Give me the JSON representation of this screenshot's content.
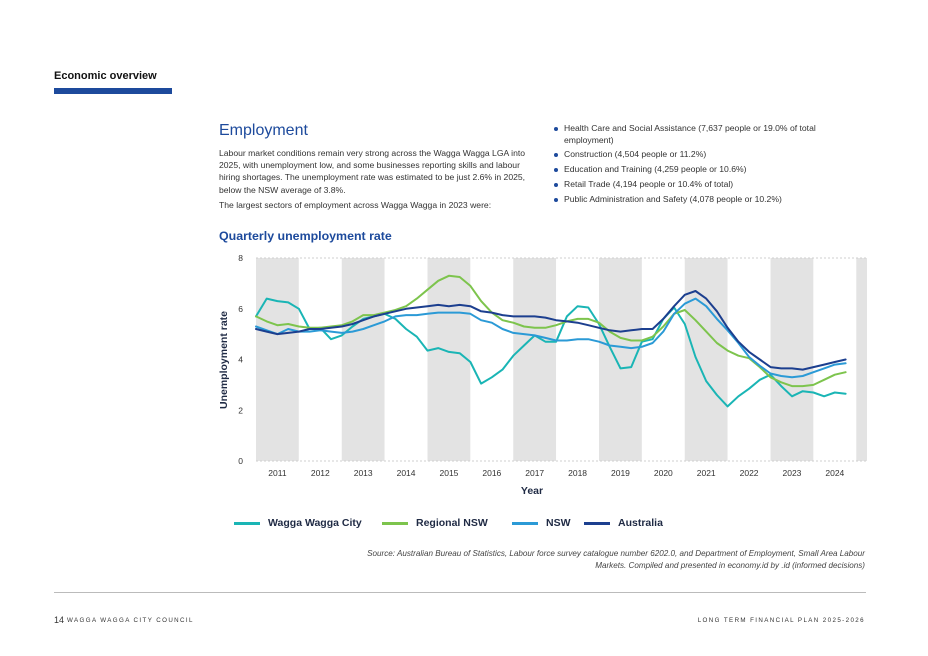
{
  "header": {
    "section": "Economic overview"
  },
  "main": {
    "heading": "Employment",
    "intro": "Labour market conditions remain very strong across the Wagga Wagga LGA into 2025, with unemployment low, and some businesses reporting skills and labour hiring shortages. The unemployment rate was estimated to be just 2.6% in 2025, below the NSW average of 3.8%.",
    "intro2": "The largest sectors of employment across Wagga Wagga in 2023 were:",
    "bullets": [
      "Health Care and Social Assistance (7,637 people or 19.0% of total employment)",
      "Construction (4,504 people or 11.2%)",
      "Education and Training (4,259 people or 10.6%)",
      "Retail Trade (4,194 people or 10.4% of total)",
      "Public Administration and Safety (4,078 people or 10.2%)"
    ]
  },
  "chart_data": {
    "type": "line",
    "title": "Quarterly unemployment rate",
    "xlabel": "Year",
    "ylabel": "Unemployment rate",
    "xlim": [
      2010.5,
      2024.75
    ],
    "ylim": [
      0,
      8
    ],
    "yticks": [
      0,
      2,
      4,
      6,
      8
    ],
    "xticks": [
      "2011",
      "2012",
      "2013",
      "2014",
      "2015",
      "2016",
      "2017",
      "2018",
      "2019",
      "2020",
      "2021",
      "2022",
      "2023",
      "2024"
    ],
    "grid": "alternating shaded year bands",
    "legend": "bottom",
    "series": [
      {
        "name": "Wagga Wagga City",
        "color": "#1ab5b5",
        "points": [
          [
            2010.5,
            5.7
          ],
          [
            2010.75,
            6.4
          ],
          [
            2011,
            6.3
          ],
          [
            2011.25,
            6.25
          ],
          [
            2011.5,
            6.0
          ],
          [
            2011.75,
            5.2
          ],
          [
            2012,
            5.25
          ],
          [
            2012.25,
            4.8
          ],
          [
            2012.5,
            4.95
          ],
          [
            2012.75,
            5.3
          ],
          [
            2013,
            5.6
          ],
          [
            2013.25,
            5.7
          ],
          [
            2013.5,
            5.8
          ],
          [
            2013.75,
            5.6
          ],
          [
            2014,
            5.2
          ],
          [
            2014.25,
            4.9
          ],
          [
            2014.5,
            4.35
          ],
          [
            2014.75,
            4.45
          ],
          [
            2015,
            4.3
          ],
          [
            2015.25,
            4.25
          ],
          [
            2015.5,
            3.9
          ],
          [
            2015.75,
            3.05
          ],
          [
            2016,
            3.3
          ],
          [
            2016.25,
            3.6
          ],
          [
            2016.5,
            4.15
          ],
          [
            2016.75,
            4.55
          ],
          [
            2017,
            4.95
          ],
          [
            2017.25,
            4.7
          ],
          [
            2017.5,
            4.7
          ],
          [
            2017.75,
            5.7
          ],
          [
            2018,
            6.1
          ],
          [
            2018.25,
            6.05
          ],
          [
            2018.5,
            5.4
          ],
          [
            2018.75,
            4.5
          ],
          [
            2019,
            3.65
          ],
          [
            2019.25,
            3.7
          ],
          [
            2019.5,
            4.7
          ],
          [
            2019.75,
            4.8
          ],
          [
            2020,
            5.6
          ],
          [
            2020.25,
            6.05
          ],
          [
            2020.5,
            5.4
          ],
          [
            2020.75,
            4.1
          ],
          [
            2021,
            3.15
          ],
          [
            2021.25,
            2.6
          ],
          [
            2021.5,
            2.15
          ],
          [
            2021.75,
            2.55
          ],
          [
            2022,
            2.85
          ],
          [
            2022.25,
            3.2
          ],
          [
            2022.5,
            3.4
          ],
          [
            2022.75,
            2.95
          ],
          [
            2023,
            2.55
          ],
          [
            2023.25,
            2.75
          ],
          [
            2023.5,
            2.7
          ],
          [
            2023.75,
            2.55
          ],
          [
            2024,
            2.7
          ],
          [
            2024.25,
            2.65
          ]
        ]
      },
      {
        "name": "Regional NSW",
        "color": "#7dc44d",
        "points": [
          [
            2010.5,
            5.7
          ],
          [
            2010.75,
            5.5
          ],
          [
            2011,
            5.35
          ],
          [
            2011.25,
            5.4
          ],
          [
            2011.5,
            5.3
          ],
          [
            2011.75,
            5.25
          ],
          [
            2012,
            5.25
          ],
          [
            2012.25,
            5.3
          ],
          [
            2012.5,
            5.35
          ],
          [
            2012.75,
            5.5
          ],
          [
            2013,
            5.75
          ],
          [
            2013.25,
            5.75
          ],
          [
            2013.5,
            5.85
          ],
          [
            2013.75,
            5.95
          ],
          [
            2014,
            6.1
          ],
          [
            2014.25,
            6.4
          ],
          [
            2014.5,
            6.75
          ],
          [
            2014.75,
            7.1
          ],
          [
            2015,
            7.3
          ],
          [
            2015.25,
            7.25
          ],
          [
            2015.5,
            6.9
          ],
          [
            2015.75,
            6.3
          ],
          [
            2016,
            5.85
          ],
          [
            2016.25,
            5.55
          ],
          [
            2016.5,
            5.45
          ],
          [
            2016.75,
            5.3
          ],
          [
            2017,
            5.25
          ],
          [
            2017.25,
            5.25
          ],
          [
            2017.5,
            5.35
          ],
          [
            2017.75,
            5.5
          ],
          [
            2018,
            5.6
          ],
          [
            2018.25,
            5.6
          ],
          [
            2018.5,
            5.45
          ],
          [
            2018.75,
            5.1
          ],
          [
            2019,
            4.85
          ],
          [
            2019.25,
            4.75
          ],
          [
            2019.5,
            4.75
          ],
          [
            2019.75,
            4.9
          ],
          [
            2020,
            5.3
          ],
          [
            2020.25,
            5.8
          ],
          [
            2020.5,
            5.95
          ],
          [
            2020.75,
            5.55
          ],
          [
            2021,
            5.1
          ],
          [
            2021.25,
            4.65
          ],
          [
            2021.5,
            4.35
          ],
          [
            2021.75,
            4.15
          ],
          [
            2022,
            4.05
          ],
          [
            2022.25,
            3.7
          ],
          [
            2022.5,
            3.3
          ],
          [
            2022.75,
            3.1
          ],
          [
            2023,
            2.95
          ],
          [
            2023.25,
            2.95
          ],
          [
            2023.5,
            3.0
          ],
          [
            2023.75,
            3.2
          ],
          [
            2024,
            3.4
          ],
          [
            2024.25,
            3.5
          ]
        ]
      },
      {
        "name": "NSW",
        "color": "#2b9ad6",
        "points": [
          [
            2010.5,
            5.3
          ],
          [
            2010.75,
            5.15
          ],
          [
            2011,
            5.0
          ],
          [
            2011.25,
            5.2
          ],
          [
            2011.5,
            5.1
          ],
          [
            2011.75,
            5.1
          ],
          [
            2012,
            5.15
          ],
          [
            2012.25,
            5.1
          ],
          [
            2012.5,
            5.05
          ],
          [
            2012.75,
            5.1
          ],
          [
            2013,
            5.2
          ],
          [
            2013.25,
            5.35
          ],
          [
            2013.5,
            5.5
          ],
          [
            2013.75,
            5.7
          ],
          [
            2014,
            5.75
          ],
          [
            2014.25,
            5.75
          ],
          [
            2014.5,
            5.8
          ],
          [
            2014.75,
            5.85
          ],
          [
            2015,
            5.85
          ],
          [
            2015.25,
            5.85
          ],
          [
            2015.5,
            5.8
          ],
          [
            2015.75,
            5.55
          ],
          [
            2016,
            5.45
          ],
          [
            2016.25,
            5.2
          ],
          [
            2016.5,
            5.05
          ],
          [
            2016.75,
            5.0
          ],
          [
            2017,
            4.95
          ],
          [
            2017.25,
            4.85
          ],
          [
            2017.5,
            4.75
          ],
          [
            2017.75,
            4.75
          ],
          [
            2018,
            4.8
          ],
          [
            2018.25,
            4.8
          ],
          [
            2018.5,
            4.7
          ],
          [
            2018.75,
            4.55
          ],
          [
            2019,
            4.5
          ],
          [
            2019.25,
            4.45
          ],
          [
            2019.5,
            4.5
          ],
          [
            2019.75,
            4.65
          ],
          [
            2020,
            5.1
          ],
          [
            2020.25,
            5.8
          ],
          [
            2020.5,
            6.2
          ],
          [
            2020.75,
            6.4
          ],
          [
            2021,
            6.1
          ],
          [
            2021.25,
            5.6
          ],
          [
            2021.5,
            5.15
          ],
          [
            2021.75,
            4.65
          ],
          [
            2022,
            4.1
          ],
          [
            2022.25,
            3.75
          ],
          [
            2022.5,
            3.45
          ],
          [
            2022.75,
            3.35
          ],
          [
            2023,
            3.3
          ],
          [
            2023.25,
            3.35
          ],
          [
            2023.5,
            3.5
          ],
          [
            2023.75,
            3.65
          ],
          [
            2024,
            3.8
          ],
          [
            2024.25,
            3.85
          ]
        ]
      },
      {
        "name": "Australia",
        "color": "#1c3f8f",
        "points": [
          [
            2010.5,
            5.2
          ],
          [
            2010.75,
            5.1
          ],
          [
            2011,
            5.0
          ],
          [
            2011.25,
            5.05
          ],
          [
            2011.5,
            5.1
          ],
          [
            2011.75,
            5.2
          ],
          [
            2012,
            5.2
          ],
          [
            2012.25,
            5.25
          ],
          [
            2012.5,
            5.3
          ],
          [
            2012.75,
            5.4
          ],
          [
            2013,
            5.55
          ],
          [
            2013.25,
            5.7
          ],
          [
            2013.5,
            5.8
          ],
          [
            2013.75,
            5.9
          ],
          [
            2014,
            6.0
          ],
          [
            2014.25,
            6.05
          ],
          [
            2014.5,
            6.1
          ],
          [
            2014.75,
            6.15
          ],
          [
            2015,
            6.1
          ],
          [
            2015.25,
            6.15
          ],
          [
            2015.5,
            6.1
          ],
          [
            2015.75,
            5.9
          ],
          [
            2016,
            5.85
          ],
          [
            2016.25,
            5.75
          ],
          [
            2016.5,
            5.7
          ],
          [
            2016.75,
            5.7
          ],
          [
            2017,
            5.7
          ],
          [
            2017.25,
            5.65
          ],
          [
            2017.5,
            5.55
          ],
          [
            2017.75,
            5.5
          ],
          [
            2018,
            5.45
          ],
          [
            2018.25,
            5.35
          ],
          [
            2018.5,
            5.25
          ],
          [
            2018.75,
            5.15
          ],
          [
            2019,
            5.1
          ],
          [
            2019.25,
            5.15
          ],
          [
            2019.5,
            5.2
          ],
          [
            2019.75,
            5.2
          ],
          [
            2020,
            5.6
          ],
          [
            2020.25,
            6.1
          ],
          [
            2020.5,
            6.55
          ],
          [
            2020.75,
            6.7
          ],
          [
            2021,
            6.4
          ],
          [
            2021.25,
            5.9
          ],
          [
            2021.5,
            5.25
          ],
          [
            2021.75,
            4.7
          ],
          [
            2022,
            4.3
          ],
          [
            2022.25,
            4.0
          ],
          [
            2022.5,
            3.7
          ],
          [
            2022.75,
            3.65
          ],
          [
            2023,
            3.65
          ],
          [
            2023.25,
            3.6
          ],
          [
            2023.5,
            3.7
          ],
          [
            2023.75,
            3.8
          ],
          [
            2024,
            3.9
          ],
          [
            2024.25,
            4.0
          ]
        ]
      }
    ]
  },
  "source": "Source: Australian Bureau of Statistics, Labour force survey catalogue number 6202.0, and Department of Employment, Small Area Labour Markets. Compiled and presented in economy.id by .id (informed decisions)",
  "footer": {
    "page": "14",
    "council": "WAGGA WAGGA CITY COUNCIL",
    "doc": "LONG TERM FINANCIAL PLAN 2025-2026"
  }
}
